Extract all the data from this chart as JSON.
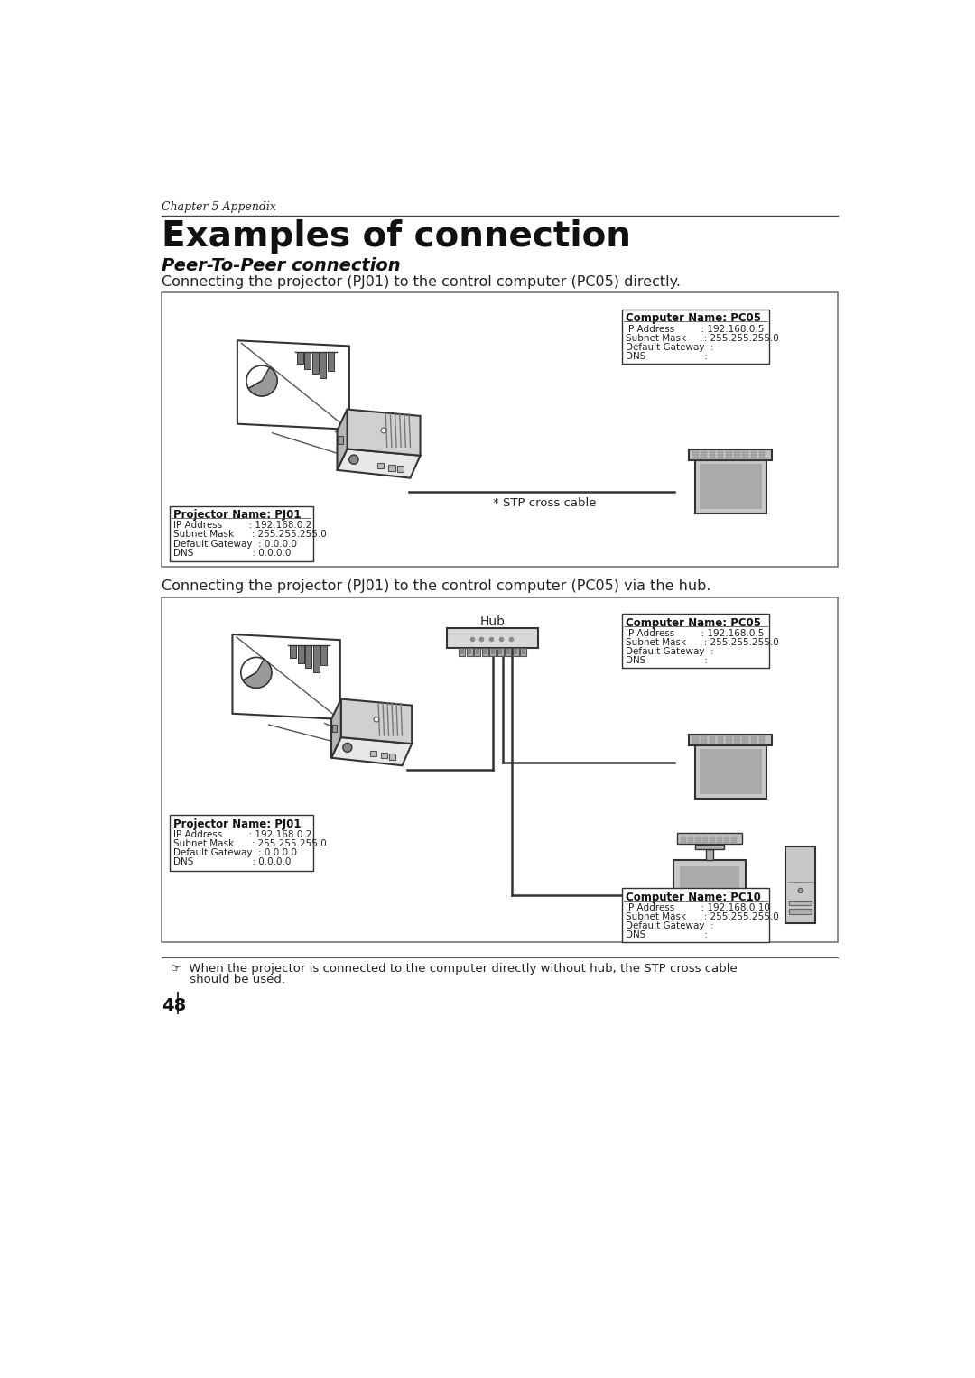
{
  "page_title": "Examples of connection",
  "chapter_label": "Chapter 5 Appendix",
  "subtitle": "Peer-To-Peer connection",
  "desc1": "Connecting the projector (PJ01) to the control computer (PC05) directly.",
  "desc2": "Connecting the projector (PJ01) to the control computer (PC05) via the hub.",
  "stp_label": "* STP cross cable",
  "hub_label": "Hub",
  "proj_box1_title": "Projector Name: PJ01",
  "proj_box1_lines": [
    "IP Address         : 192.168.0.2",
    "Subnet Mask      : 255.255.255.0",
    "Default Gateway  : 0.0.0.0",
    "DNS                    : 0.0.0.0"
  ],
  "pc05_box1_title": "Computer Name: PC05",
  "pc05_box1_lines": [
    "IP Address         : 192.168.0.5",
    "Subnet Mask      : 255.255.255.0",
    "Default Gateway  :",
    "DNS                    :"
  ],
  "proj_box2_title": "Projector Name: PJ01",
  "proj_box2_lines": [
    "IP Address         : 192.168.0.2",
    "Subnet Mask      : 255.255.255.0",
    "Default Gateway  : 0.0.0.0",
    "DNS                    : 0.0.0.0"
  ],
  "pc05_box2_title": "Computer Name: PC05",
  "pc05_box2_lines": [
    "IP Address         : 192.168.0.5",
    "Subnet Mask      : 255.255.255.0",
    "Default Gateway  :",
    "DNS                    :"
  ],
  "pc10_box_title": "Computer Name: PC10",
  "pc10_box_lines": [
    "IP Address         : 192.168.0.10",
    "Subnet Mask      : 255.255.255.0",
    "Default Gateway  :",
    "DNS                    :"
  ],
  "footnote_line1": "☞  When the projector is connected to the computer directly without hub, the STP cross cable",
  "footnote_line2": "     should be used.",
  "page_number": "48",
  "bg_color": "#ffffff",
  "text_color": "#000000",
  "gray1": "#cccccc",
  "gray2": "#aaaaaa",
  "gray3": "#888888",
  "gray4": "#555555",
  "gray5": "#333333",
  "border_gray": "#777777"
}
